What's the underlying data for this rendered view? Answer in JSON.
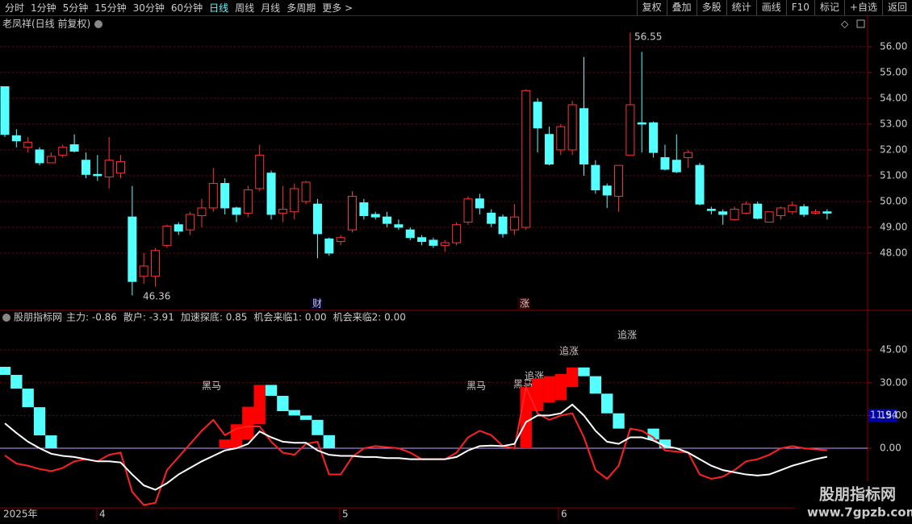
{
  "toolbar": {
    "left": [
      "分时",
      "1分钟",
      "5分钟",
      "15分钟",
      "30分钟",
      "60分钟",
      "日线",
      "周线",
      "月线",
      "多周期",
      "更多 >"
    ],
    "active": "日线",
    "right": [
      "复权",
      "叠加",
      "多股",
      "统计",
      "画线",
      "F10",
      "标记",
      "+自选",
      "返回"
    ]
  },
  "price_chart": {
    "type": "candlestick",
    "title": "老凤祥(日线 前复权)",
    "max_label": "56.55",
    "min_label": "46.36",
    "events": [
      "财",
      "涨"
    ],
    "ylim": [
      45.78,
      56.56
    ],
    "yticks": [
      {
        "value": 48,
        "label": "48.00"
      },
      {
        "value": 49,
        "label": "49.00"
      },
      {
        "value": 50,
        "label": "50.00"
      },
      {
        "value": 51,
        "label": "51.00"
      },
      {
        "value": 52,
        "label": "52.00"
      },
      {
        "value": 53,
        "label": "53.00"
      },
      {
        "value": 54,
        "label": "54.00"
      },
      {
        "value": 55,
        "label": "55.00"
      },
      {
        "value": 56,
        "label": "56.00"
      }
    ],
    "up_color": "#ff3232",
    "down_color": "#54ffff",
    "open": [
      54.45,
      52.55,
      52.1,
      52.0,
      51.5,
      51.8,
      52.2,
      51.6,
      51.05,
      50.95,
      51.1,
      49.4,
      47.1,
      47.1,
      48.3,
      49.1,
      48.9,
      49.45,
      49.75,
      50.7,
      49.75,
      49.55,
      50.5,
      51.1,
      49.55,
      49.6,
      50.0,
      49.9,
      48.55,
      48.45,
      48.9,
      49.95,
      49.5,
      49.4,
      49.1,
      48.9,
      48.6,
      48.5,
      48.3,
      48.4,
      49.2,
      50.1,
      49.55,
      49.4,
      48.9,
      49.0,
      53.85,
      52.6,
      52.0,
      52.0,
      53.6,
      51.4,
      50.6,
      50.2,
      51.8,
      53.05,
      53.05,
      51.7,
      51.6,
      51.7,
      51.4,
      49.7,
      49.6,
      49.3,
      49.55,
      49.9,
      49.2,
      49.45,
      49.6,
      49.8,
      49.55,
      49.6
    ],
    "close": [
      52.6,
      52.35,
      52.3,
      51.5,
      51.75,
      52.1,
      51.95,
      51.05,
      51.0,
      51.6,
      51.55,
      46.9,
      47.5,
      48.1,
      49.05,
      48.85,
      49.5,
      49.75,
      50.7,
      49.75,
      49.5,
      50.45,
      51.8,
      49.5,
      49.7,
      50.5,
      50.75,
      48.75,
      48.0,
      48.6,
      50.2,
      49.45,
      49.4,
      49.15,
      49.0,
      48.6,
      48.45,
      48.3,
      48.4,
      49.1,
      50.1,
      49.75,
      49.15,
      48.75,
      49.4,
      54.3,
      52.85,
      51.45,
      52.9,
      53.75,
      51.45,
      50.45,
      50.25,
      51.4,
      53.75,
      53.0,
      51.9,
      51.25,
      51.15,
      51.9,
      49.9,
      49.65,
      49.5,
      49.7,
      49.9,
      49.35,
      49.6,
      49.75,
      49.85,
      49.5,
      49.6,
      49.55
    ],
    "high": [
      54.45,
      52.8,
      52.5,
      52.1,
      51.9,
      52.2,
      52.6,
      51.9,
      51.8,
      52.5,
      51.8,
      50.6,
      48.0,
      48.2,
      49.1,
      49.2,
      49.6,
      50.1,
      51.3,
      50.9,
      49.8,
      50.6,
      52.2,
      51.2,
      50.6,
      50.7,
      50.8,
      50.1,
      48.6,
      48.7,
      50.4,
      50.1,
      49.6,
      49.6,
      49.3,
      49.0,
      48.7,
      48.6,
      48.5,
      49.2,
      50.2,
      50.3,
      49.7,
      49.5,
      49.9,
      54.35,
      54.0,
      52.9,
      53.0,
      53.9,
      55.6,
      51.6,
      50.7,
      51.4,
      56.55,
      55.8,
      53.1,
      52.2,
      52.6,
      52.0,
      51.5,
      49.8,
      49.7,
      49.8,
      50.0,
      50.0,
      49.6,
      49.8,
      50.0,
      49.9,
      49.7,
      49.7
    ],
    "low": [
      52.5,
      52.1,
      51.9,
      51.4,
      51.5,
      51.7,
      51.9,
      50.9,
      50.8,
      50.5,
      50.9,
      46.36,
      46.8,
      46.7,
      48.2,
      48.7,
      48.7,
      49.0,
      49.6,
      49.5,
      49.2,
      49.4,
      50.4,
      49.3,
      49.2,
      49.3,
      49.9,
      47.8,
      47.9,
      48.3,
      48.8,
      49.3,
      49.3,
      49.0,
      48.9,
      48.5,
      48.3,
      48.2,
      48.05,
      48.3,
      49.1,
      49.5,
      49.0,
      48.6,
      48.7,
      48.9,
      51.9,
      51.4,
      51.8,
      51.8,
      51.0,
      50.3,
      49.75,
      49.6,
      51.8,
      51.9,
      51.7,
      51.2,
      51.1,
      51.3,
      49.85,
      49.5,
      49.1,
      49.25,
      49.5,
      49.3,
      49.2,
      49.3,
      49.5,
      49.4,
      49.5,
      49.3
    ]
  },
  "indicator": {
    "type": "line",
    "name": "股朋指标网",
    "readouts": [
      {
        "text": "主力: -0.86",
        "color": "#ff3232"
      },
      {
        "text": "散户: -3.91",
        "color": "#ffffff"
      },
      {
        "text": "加速探底: 0.85",
        "color": "#ffff54"
      },
      {
        "text": "机会来临1: 0.00",
        "color": "#ffffff"
      },
      {
        "text": "机会来临2: 0.00",
        "color": "#ff54ff"
      }
    ],
    "cursor_label": "11.94",
    "signals": [
      "黑马",
      "黑马",
      "黑马",
      "追涨",
      "追涨",
      "追涨"
    ],
    "ylim": [
      -27.3,
      57.6
    ],
    "yticks": [
      {
        "value": 0,
        "label": "0.00"
      },
      {
        "value": 15,
        "label": "15.00"
      },
      {
        "value": 30,
        "label": "30.00"
      },
      {
        "value": 45,
        "label": "45.00"
      }
    ],
    "blocks": {
      "high": [
        37.3,
        33.6,
        27.3,
        18.8,
        5.9,
        null,
        null,
        null,
        null,
        null,
        null,
        null,
        null,
        null,
        null,
        null,
        null,
        null,
        null,
        4,
        11,
        19,
        29,
        29,
        24,
        17.5,
        15,
        13,
        6,
        null,
        null,
        null,
        null,
        null,
        null,
        null,
        null,
        null,
        null,
        null,
        null,
        null,
        null,
        null,
        null,
        28,
        32,
        33,
        34,
        37,
        37,
        33,
        25,
        16,
        null,
        null,
        9,
        4,
        null,
        null,
        null,
        null,
        null,
        null,
        null,
        null,
        null,
        null,
        null,
        null,
        null,
        null
      ],
      "low": [
        33.6,
        27.3,
        18.8,
        5.9,
        0,
        null,
        null,
        null,
        null,
        null,
        null,
        null,
        null,
        null,
        null,
        null,
        null,
        null,
        null,
        0,
        0,
        4,
        11,
        24,
        17,
        15,
        13,
        6,
        0,
        null,
        null,
        null,
        null,
        null,
        null,
        null,
        null,
        null,
        null,
        null,
        null,
        null,
        null,
        null,
        null,
        0,
        17,
        21,
        22,
        28,
        33,
        25,
        16,
        9,
        null,
        null,
        4,
        0,
        null,
        null,
        null,
        null,
        null,
        null,
        null,
        null,
        null,
        null,
        null,
        null,
        null,
        null
      ],
      "color": [
        "#54ffff",
        "#54ffff",
        "#54ffff",
        "#54ffff",
        "#54ffff",
        null,
        null,
        null,
        null,
        null,
        null,
        null,
        null,
        null,
        null,
        null,
        null,
        null,
        null,
        "#ff0000",
        "#ff0000",
        "#ff0000",
        "#ff0000",
        "#54ffff",
        "#54ffff",
        "#54ffff",
        "#54ffff",
        "#54ffff",
        "#54ffff",
        null,
        null,
        null,
        null,
        null,
        null,
        null,
        null,
        null,
        null,
        null,
        null,
        null,
        null,
        null,
        null,
        "#ff0000",
        "#ff0000",
        "#ff0000",
        "#ff0000",
        "#ff0000",
        "#54ffff",
        "#54ffff",
        "#54ffff",
        "#54ffff",
        null,
        null,
        "#54ffff",
        "#54ffff",
        null,
        null,
        null,
        null,
        null,
        null,
        null,
        null,
        null,
        null,
        null,
        null,
        null,
        null
      ]
    },
    "series": [
      {
        "color": "#ff2020",
        "values": [
          -3.3,
          -7,
          -8,
          -9.5,
          -10.5,
          -9,
          -6,
          -5,
          -6,
          -3,
          -2,
          -20,
          -26,
          -25,
          -10,
          -4,
          2,
          8,
          13,
          6,
          9,
          10,
          10,
          3,
          -2,
          -3,
          2,
          3,
          -12,
          -12,
          -4,
          0,
          1,
          0.5,
          0,
          -2,
          -5,
          -5,
          -5,
          -2,
          5,
          8,
          6,
          1,
          0,
          28,
          16,
          13,
          15,
          16,
          5,
          -10,
          -14,
          -8,
          9,
          8,
          5,
          -1,
          -1.5,
          -2,
          -12,
          -14,
          -13,
          -10,
          -6,
          -5,
          -3,
          0,
          1,
          0,
          -0.5,
          -0.86
        ]
      },
      {
        "color": "#ffffff",
        "values": [
          11.4,
          7,
          3,
          0,
          -2.5,
          -3.5,
          -4,
          -5,
          -6,
          -6,
          -6.5,
          -12,
          -17,
          -19,
          -16,
          -12,
          -9,
          -6,
          -3.5,
          -1,
          0,
          2,
          7.7,
          5,
          3,
          2.5,
          2.5,
          -1,
          -3,
          -3.5,
          -3.5,
          -4,
          -4,
          -4.5,
          -4.5,
          -5,
          -5,
          -5,
          -5,
          -4,
          -1,
          1,
          1.2,
          1,
          2,
          12,
          15,
          15,
          16,
          20,
          15,
          8,
          3,
          2,
          5,
          5,
          3.5,
          1,
          0,
          -2,
          -5,
          -8,
          -10,
          -11,
          -12,
          -12.5,
          -12,
          -10,
          -8,
          -6.5,
          -5,
          -3.91
        ]
      }
    ],
    "x_labels": [
      "2025年",
      "4",
      "5",
      "6"
    ]
  },
  "watermark": {
    "title": "股朋指标网",
    "url": "www.7gpzb.com"
  }
}
